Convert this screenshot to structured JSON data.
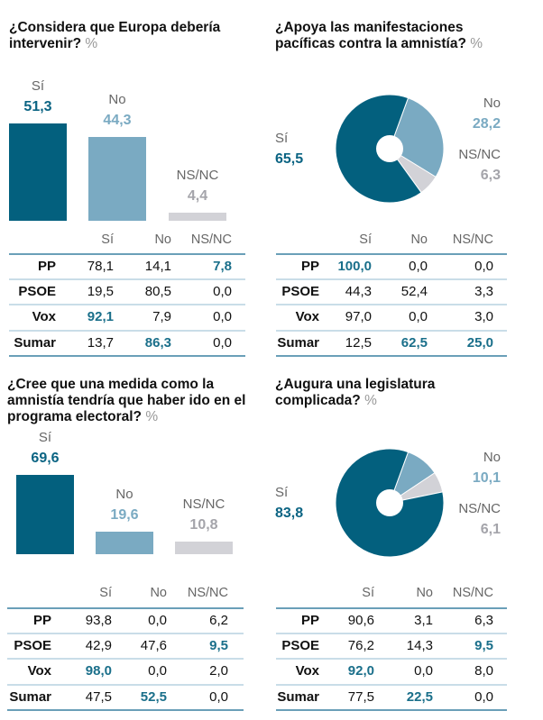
{
  "colors": {
    "si": "#03607e",
    "no": "#7aaac2",
    "nsnc": "#d2d2d7",
    "highlight": "#1a6f8a",
    "si_text": "#0b6483",
    "no_text": "#7aaac2",
    "nsnc_text": "#a4a4aa"
  },
  "chart_data": [
    {
      "type": "bar",
      "title": "¿Considera que Europa debería intervenir?",
      "unit": "%",
      "categories": [
        "Sí",
        "No",
        "NS/NC"
      ],
      "values_text": [
        "51,3",
        "44,3",
        "4,4"
      ],
      "values": [
        51.3,
        44.3,
        4.4
      ],
      "table": {
        "columns": [
          "Sí",
          "No",
          "NS/NC"
        ],
        "rows": [
          {
            "party": "PP",
            "cells": [
              "78,1",
              "14,1",
              "7,8"
            ],
            "highlight": 2
          },
          {
            "party": "PSOE",
            "cells": [
              "19,5",
              "80,5",
              "0,0"
            ],
            "highlight": -1
          },
          {
            "party": "Vox",
            "cells": [
              "92,1",
              "7,9",
              "0,0"
            ],
            "highlight": 0
          },
          {
            "party": "Sumar",
            "cells": [
              "13,7",
              "86,3",
              "0,0"
            ],
            "highlight": 1
          }
        ]
      }
    },
    {
      "type": "pie",
      "title": "¿Apoya las manifestaciones pacíficas contra la amnistía?",
      "unit": "%",
      "categories": [
        "Sí",
        "No",
        "NS/NC"
      ],
      "values_text": [
        "65,5",
        "28,2",
        "6,3"
      ],
      "values": [
        65.5,
        28.2,
        6.3
      ],
      "table": {
        "columns": [
          "Sí",
          "No",
          "NS/NC"
        ],
        "rows": [
          {
            "party": "PP",
            "cells": [
              "100,0",
              "0,0",
              "0,0"
            ],
            "highlight": 0
          },
          {
            "party": "PSOE",
            "cells": [
              "44,3",
              "52,4",
              "3,3"
            ],
            "highlight": -1
          },
          {
            "party": "Vox",
            "cells": [
              "97,0",
              "0,0",
              "3,0"
            ],
            "highlight": -1
          },
          {
            "party": "Sumar",
            "cells": [
              "12,5",
              "62,5",
              "25,0"
            ],
            "highlight": [
              1,
              2
            ]
          }
        ]
      }
    },
    {
      "type": "bar",
      "title": "¿Cree que una medida como la amnistía tendría que haber ido en el programa electoral?",
      "unit": "%",
      "categories": [
        "Sí",
        "No",
        "NS/NC"
      ],
      "values_text": [
        "69,6",
        "19,6",
        "10,8"
      ],
      "values": [
        69.6,
        19.6,
        10.8
      ],
      "table": {
        "columns": [
          "Sí",
          "No",
          "NS/NC"
        ],
        "rows": [
          {
            "party": "PP",
            "cells": [
              "93,8",
              "0,0",
              "6,2"
            ],
            "highlight": -1
          },
          {
            "party": "PSOE",
            "cells": [
              "42,9",
              "47,6",
              "9,5"
            ],
            "highlight": 2
          },
          {
            "party": "Vox",
            "cells": [
              "98,0",
              "0,0",
              "2,0"
            ],
            "highlight": 0
          },
          {
            "party": "Sumar",
            "cells": [
              "47,5",
              "52,5",
              "0,0"
            ],
            "highlight": 1
          }
        ]
      }
    },
    {
      "type": "pie",
      "title": "¿Augura una legislatura complicada?",
      "unit": "%",
      "categories": [
        "Sí",
        "No",
        "NS/NC"
      ],
      "values_text": [
        "83,8",
        "10,1",
        "6,1"
      ],
      "values": [
        83.8,
        10.1,
        6.1
      ],
      "table": {
        "columns": [
          "Sí",
          "No",
          "NS/NC"
        ],
        "rows": [
          {
            "party": "PP",
            "cells": [
              "90,6",
              "3,1",
              "6,3"
            ],
            "highlight": -1
          },
          {
            "party": "PSOE",
            "cells": [
              "76,2",
              "14,3",
              "9,5"
            ],
            "highlight": 2
          },
          {
            "party": "Vox",
            "cells": [
              "92,0",
              "0,0",
              "8,0"
            ],
            "highlight": 0
          },
          {
            "party": "Sumar",
            "cells": [
              "77,5",
              "22,5",
              "0,0"
            ],
            "highlight": 1
          }
        ]
      }
    }
  ]
}
